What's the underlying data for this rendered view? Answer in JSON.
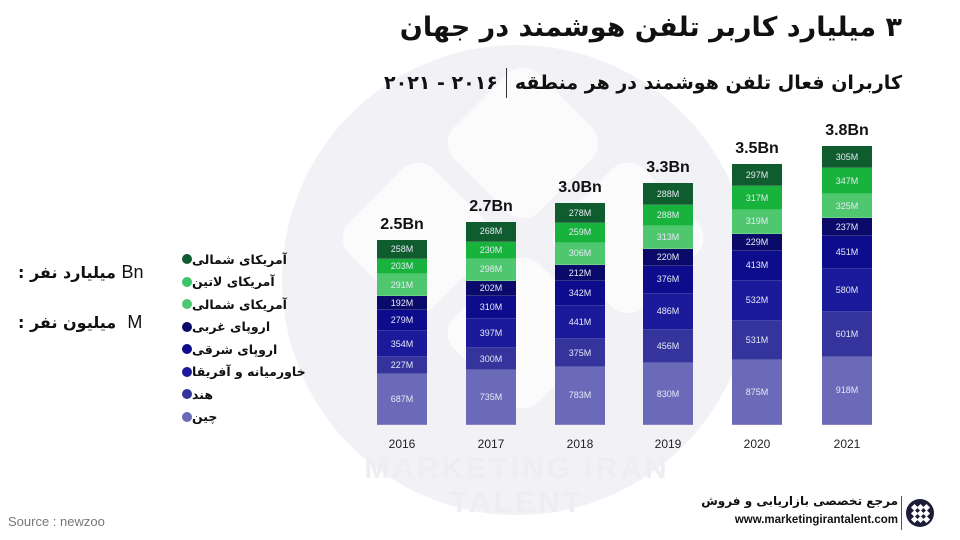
{
  "header": {
    "title": "۳ میلیارد کاربر تلفن هوشمند در جهان",
    "subtitle": "کاربران فعال تلفن هوشمند در هر منطقه",
    "period": "۲۰۱۶ - ۲۰۲۱"
  },
  "units": {
    "billion_label": "میلیارد نفر :",
    "billion_abbr": "Bn",
    "million_label": "میلیون نفر :",
    "million_abbr": "M"
  },
  "legend": [
    {
      "label": "آمریکای شمالی",
      "color": "#0f5c2e"
    },
    {
      "label": "آمریکای لاتین",
      "color": "#3cc46a"
    },
    {
      "label": "آمریکای شمالی",
      "color": "#4fc76f"
    },
    {
      "label": "اروپای غربی",
      "color": "#0a0a6b"
    },
    {
      "label": "اروپای شرقی",
      "color": "#0c0c8c"
    },
    {
      "label": "خاورمیانه و آفریقا",
      "color": "#1a1a9a"
    },
    {
      "label": "هند",
      "color": "#34349c"
    },
    {
      "label": "چین",
      "color": "#6a6ab8"
    }
  ],
  "watermark": "MARKETING IRAN TALENT",
  "source": "Source  : newzoo",
  "brand": {
    "tagline": "مرجع تخصصی بازاریابی و فروش",
    "url": "www.marketingirantalent.com"
  },
  "chart_data": {
    "type": "bar",
    "stacked": true,
    "title": "۳ میلیارد کاربر تلفن هوشمند در جهان",
    "subtitle": "کاربران فعال تلفن هوشمند در هر منطقه ۲۰۱۶ - ۲۰۲۱",
    "xlabel": "",
    "ylabel": "",
    "categories": [
      "2016",
      "2017",
      "2018",
      "2019",
      "2020",
      "2021"
    ],
    "totals": [
      "2.5Bn",
      "2.7Bn",
      "3.0Bn",
      "3.3Bn",
      "3.5Bn",
      "3.8Bn"
    ],
    "series": [
      {
        "name": "چین",
        "color": "#6a6ab8",
        "values": [
          687,
          735,
          783,
          830,
          875,
          918
        ]
      },
      {
        "name": "هند",
        "color": "#34349c",
        "values": [
          227,
          300,
          375,
          456,
          531,
          601
        ]
      },
      {
        "name": "خاورمیانه و آفریقا",
        "color": "#1a1a9a",
        "values": [
          354,
          397,
          441,
          486,
          532,
          580
        ]
      },
      {
        "name": "اروپای شرقی",
        "color": "#0c0c8c",
        "values": [
          279,
          310,
          342,
          376,
          413,
          451
        ]
      },
      {
        "name": "اروپای غربی",
        "color": "#0a0a6b",
        "values": [
          192,
          202,
          212,
          220,
          229,
          237
        ]
      },
      {
        "name": "آمریکای شمالی",
        "color": "#4fc76f",
        "values": [
          291,
          298,
          306,
          313,
          319,
          325
        ]
      },
      {
        "name": "آمریکای لاتین",
        "color": "#17b33c",
        "values": [
          203,
          230,
          259,
          288,
          317,
          347
        ]
      },
      {
        "name": "آمریکای شمالی",
        "color": "#0f5c2e",
        "values": [
          258,
          268,
          278,
          288,
          297,
          305
        ]
      }
    ],
    "unit": "M",
    "legend_position": "left",
    "grid": false
  }
}
